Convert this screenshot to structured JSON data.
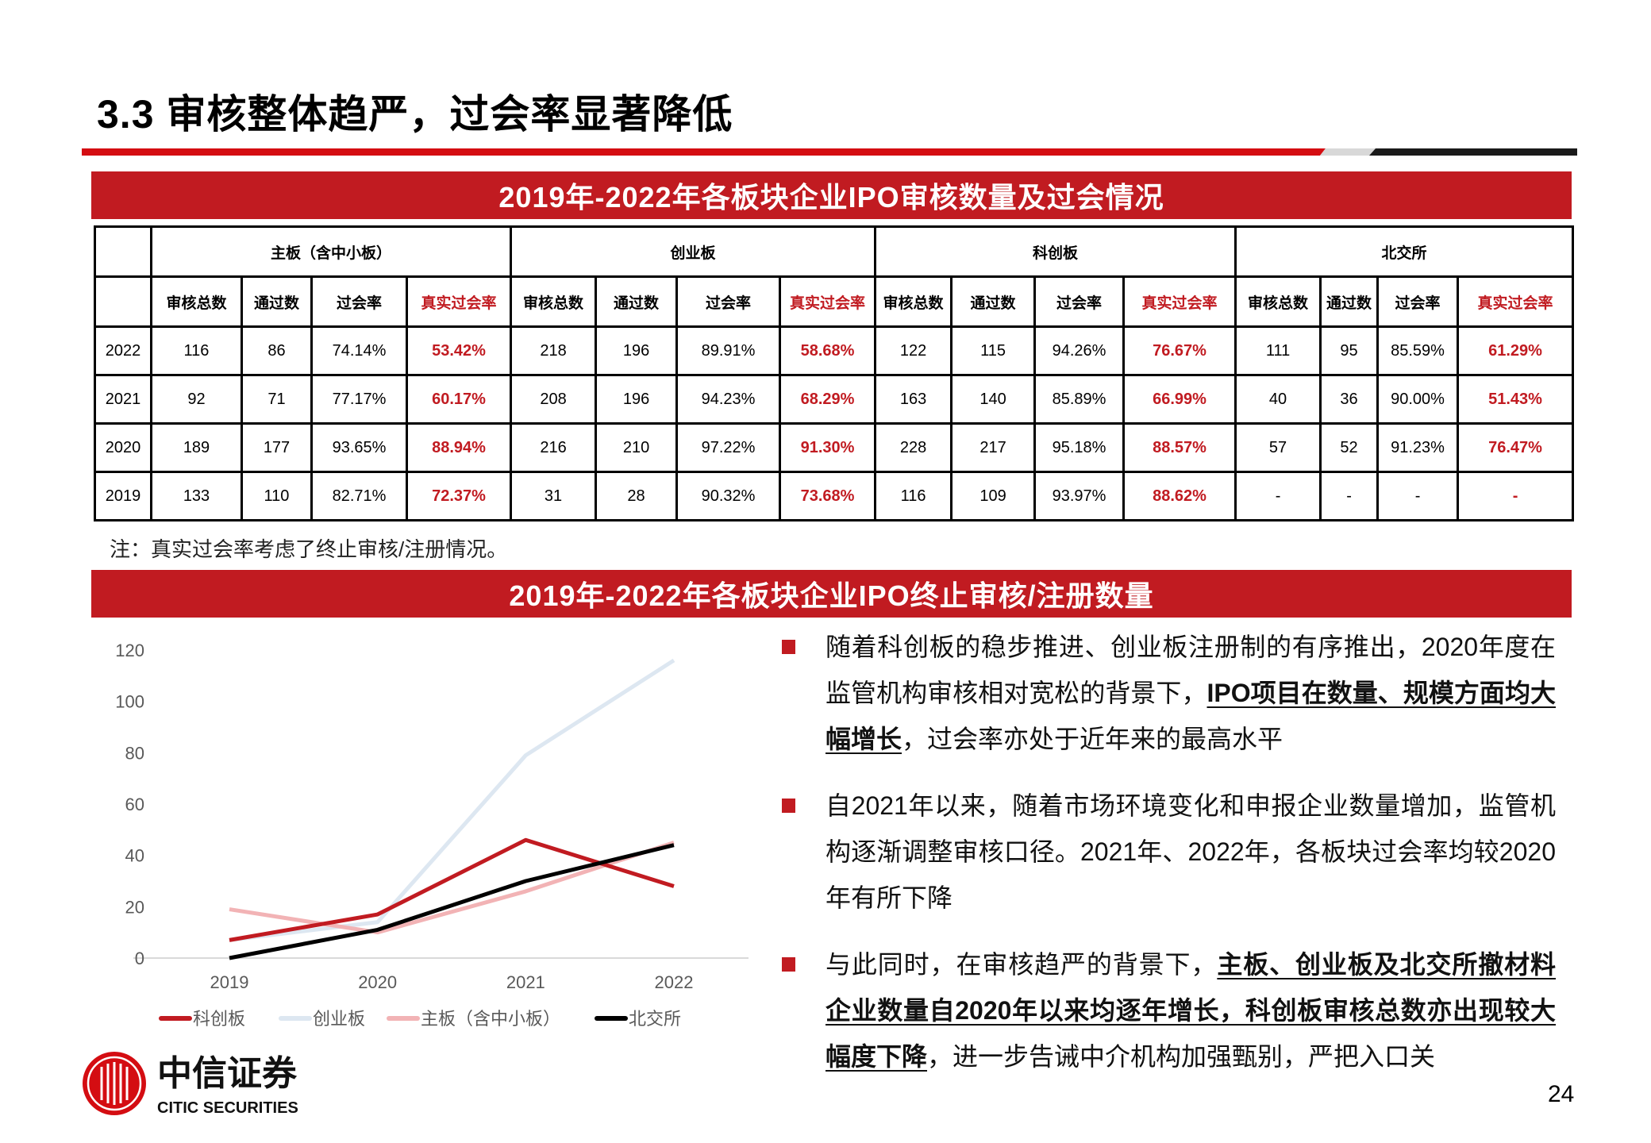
{
  "title": "3.3 审核整体趋严，过会率显著降低",
  "colors": {
    "accent_red": "#c11b21",
    "divider_gray": "#d8d8d8",
    "divider_black": "#1a1a1a"
  },
  "table_section": {
    "title": "2019年-2022年各板块企业IPO审核数量及过会情况",
    "groups": [
      "主板（含中小板）",
      "创业板",
      "科创板",
      "北交所"
    ],
    "subheaders": [
      "审核总数",
      "通过数",
      "过会率",
      "真实过会率"
    ],
    "rows": [
      {
        "year": "2022",
        "cells": [
          "116",
          "86",
          "74.14%",
          "53.42%",
          "218",
          "196",
          "89.91%",
          "58.68%",
          "122",
          "115",
          "94.26%",
          "76.67%",
          "111",
          "95",
          "85.59%",
          "61.29%"
        ]
      },
      {
        "year": "2021",
        "cells": [
          "92",
          "71",
          "77.17%",
          "60.17%",
          "208",
          "196",
          "94.23%",
          "68.29%",
          "163",
          "140",
          "85.89%",
          "66.99%",
          "40",
          "36",
          "90.00%",
          "51.43%"
        ]
      },
      {
        "year": "2020",
        "cells": [
          "189",
          "177",
          "93.65%",
          "88.94%",
          "216",
          "210",
          "97.22%",
          "91.30%",
          "228",
          "217",
          "95.18%",
          "88.57%",
          "57",
          "52",
          "91.23%",
          "76.47%"
        ]
      },
      {
        "year": "2019",
        "cells": [
          "133",
          "110",
          "82.71%",
          "72.37%",
          "31",
          "28",
          "90.32%",
          "73.68%",
          "116",
          "109",
          "93.97%",
          "88.62%",
          "-",
          "-",
          "-",
          "-"
        ]
      }
    ],
    "note": "注：真实过会率考虑了终止审核/注册情况。"
  },
  "chart_section": {
    "title": "2019年-2022年各板块企业IPO终止审核/注册数量"
  },
  "chart_data": {
    "type": "line",
    "x": [
      "2019",
      "2020",
      "2021",
      "2022"
    ],
    "ylim": [
      0,
      120
    ],
    "yticks": [
      "0",
      "20",
      "40",
      "60",
      "80",
      "100",
      "120"
    ],
    "grid": false,
    "legend_position": "bottom",
    "series": [
      {
        "name": "科创板",
        "color": "#c11b21",
        "values": [
          7,
          17,
          46,
          28
        ]
      },
      {
        "name": "创业板",
        "color": "#dde7f1",
        "values": [
          7,
          14,
          79,
          116
        ]
      },
      {
        "name": "主板（含中小板）",
        "color": "#f2b3b5",
        "values": [
          19,
          10,
          26,
          45
        ]
      },
      {
        "name": "北交所",
        "color": "#000000",
        "values": [
          0,
          11,
          30,
          44
        ]
      }
    ]
  },
  "bullets": [
    {
      "segments": [
        {
          "text": "随着科创板的稳步推进、创业板注册制的有序推出，2020年度在监管机构审核相对宽松的背景下，",
          "u": false
        },
        {
          "text": "IPO项目在数量、规模方面均大幅增长",
          "u": true
        },
        {
          "text": "，过会率亦处于近年来的最高水平",
          "u": false
        }
      ]
    },
    {
      "segments": [
        {
          "text": "自2021年以来，随着市场环境变化和申报企业数量增加，监管机构逐渐调整审核口径。2021年、2022年，各板块过会率均较2020年有所下降",
          "u": false
        }
      ]
    },
    {
      "segments": [
        {
          "text": "与此同时，在审核趋严的背景下，",
          "u": false
        },
        {
          "text": "主板、创业板及北交所撤材料企业数量自2020年以来均逐年增长，科创板审核总数亦出现较大幅度下降",
          "u": true
        },
        {
          "text": "，进一步告诫中介机构加强甄别，严把入口关",
          "u": false
        }
      ]
    }
  ],
  "logo": {
    "cn": "中信证券",
    "en": "CITIC SECURITIES"
  },
  "page_number": "24"
}
